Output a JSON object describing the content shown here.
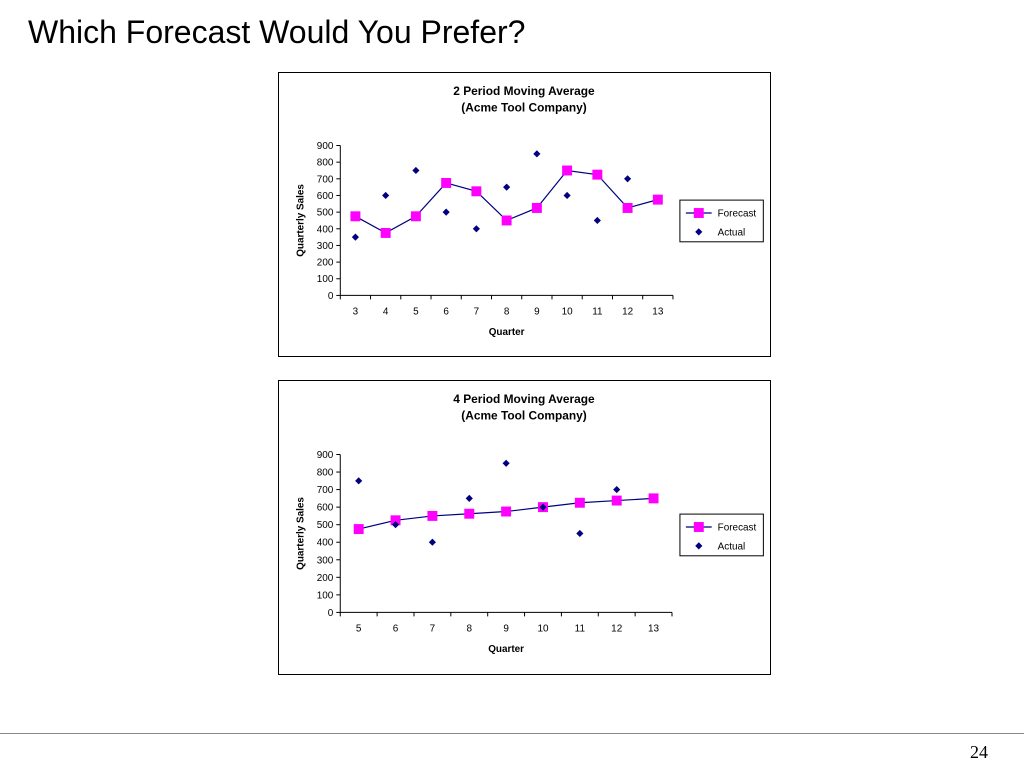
{
  "slide": {
    "title": "Which Forecast Would You Prefer?",
    "page_number": "24"
  },
  "colors": {
    "forecast": "#ff00ff",
    "forecast_line": "#000080",
    "actual": "#000080"
  },
  "chart_data": [
    {
      "type": "line",
      "title": "2 Period Moving Average",
      "subtitle": "(Acme Tool Company)",
      "xlabel": "Quarter",
      "ylabel": "Quarterly Sales",
      "categories": [
        "3",
        "4",
        "5",
        "6",
        "7",
        "8",
        "9",
        "10",
        "11",
        "12",
        "13"
      ],
      "ylim": [
        0,
        900
      ],
      "yticks": [
        0,
        100,
        200,
        300,
        400,
        500,
        600,
        700,
        800,
        900
      ],
      "grid": false,
      "legend_position": "right",
      "series": [
        {
          "name": "Forecast",
          "style": "line-square",
          "values": [
            475,
            375,
            475,
            675,
            625,
            450,
            525,
            750,
            725,
            525,
            575
          ]
        },
        {
          "name": "Actual",
          "style": "diamond",
          "values": [
            350,
            600,
            750,
            500,
            400,
            650,
            850,
            600,
            450,
            700,
            null
          ]
        }
      ]
    },
    {
      "type": "line",
      "title": "4 Period Moving Average",
      "subtitle": "(Acme Tool Company)",
      "xlabel": "Quarter",
      "ylabel": "Quarterly Sales",
      "categories": [
        "5",
        "6",
        "7",
        "8",
        "9",
        "10",
        "11",
        "12",
        "13"
      ],
      "ylim": [
        0,
        900
      ],
      "yticks": [
        0,
        100,
        200,
        300,
        400,
        500,
        600,
        700,
        800,
        900
      ],
      "grid": false,
      "legend_position": "right",
      "series": [
        {
          "name": "Forecast",
          "style": "line-square",
          "values": [
            475,
            525,
            550,
            562.5,
            575,
            600,
            625,
            637.5,
            650
          ]
        },
        {
          "name": "Actual",
          "style": "diamond",
          "values": [
            750,
            500,
            400,
            650,
            850,
            600,
            450,
            700,
            null
          ]
        }
      ]
    }
  ]
}
